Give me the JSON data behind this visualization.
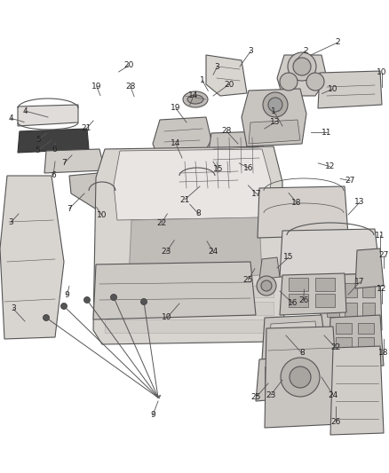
{
  "bg_color": "#ffffff",
  "fig_width": 4.38,
  "fig_height": 5.33,
  "dpi": 100,
  "line_color": "#555555",
  "label_color": "#222222",
  "label_fontsize": 6.5,
  "parts_lw": 0.8,
  "labels": {
    "1": [
      0.535,
      0.808,
      0.52,
      0.83
    ],
    "2": [
      0.76,
      0.872,
      0.785,
      0.893
    ],
    "3": [
      0.548,
      0.842,
      0.558,
      0.858
    ],
    "3b": [
      0.048,
      0.548,
      0.028,
      0.53
    ],
    "4": [
      0.062,
      0.742,
      0.028,
      0.75
    ],
    "5": [
      0.12,
      0.718,
      0.098,
      0.705
    ],
    "6": [
      0.142,
      0.698,
      0.14,
      0.683
    ],
    "7": [
      0.185,
      0.672,
      0.165,
      0.655
    ],
    "8": [
      0.488,
      0.568,
      0.51,
      0.548
    ],
    "9": [
      0.178,
      0.395,
      0.172,
      0.376
    ],
    "10": [
      0.248,
      0.562,
      0.262,
      0.545
    ],
    "10b": [
      0.828,
      0.802,
      0.855,
      0.812
    ],
    "11": [
      0.8,
      0.72,
      0.84,
      0.72
    ],
    "12": [
      0.818,
      0.655,
      0.848,
      0.648
    ],
    "13": [
      0.68,
      0.728,
      0.708,
      0.742
    ],
    "14": [
      0.488,
      0.778,
      0.498,
      0.798
    ],
    "15": [
      0.548,
      0.658,
      0.56,
      0.643
    ],
    "16": [
      0.615,
      0.655,
      0.638,
      0.645
    ],
    "17": [
      0.638,
      0.608,
      0.66,
      0.59
    ],
    "18": [
      0.742,
      0.592,
      0.762,
      0.572
    ],
    "19": [
      0.258,
      0.798,
      0.248,
      0.818
    ],
    "20": [
      0.305,
      0.848,
      0.332,
      0.862
    ],
    "21": [
      0.24,
      0.745,
      0.222,
      0.728
    ],
    "22": [
      0.43,
      0.548,
      0.415,
      0.528
    ],
    "23": [
      0.448,
      0.492,
      0.428,
      0.468
    ],
    "24": [
      0.532,
      0.49,
      0.548,
      0.468
    ],
    "25": [
      0.655,
      0.432,
      0.638,
      0.408
    ],
    "26": [
      0.782,
      0.388,
      0.78,
      0.365
    ],
    "27": [
      0.875,
      0.622,
      0.9,
      0.618
    ],
    "28": [
      0.345,
      0.796,
      0.335,
      0.818
    ]
  }
}
